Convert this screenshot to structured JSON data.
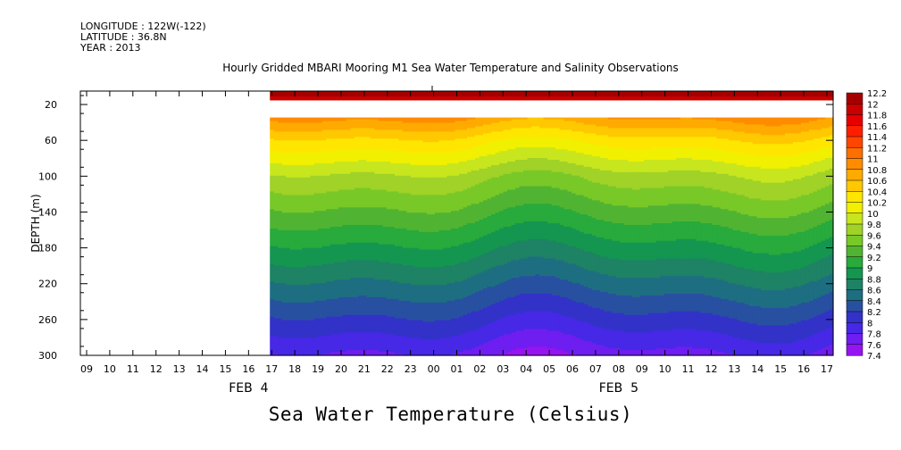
{
  "header": {
    "longitude": "LONGITUDE : 122W(-122)",
    "latitude": "LATITUDE : 36.8N",
    "year": "YEAR : 2013"
  },
  "chart_data": {
    "type": "heatmap",
    "title": "Hourly Gridded MBARI Mooring M1 Sea Water Temperature and Salinity Observations",
    "caption": "Sea Water Temperature (Celsius)",
    "ylabel": "DEPTH (m)",
    "xlabel": "",
    "x_ticks": [
      "09",
      "10",
      "11",
      "12",
      "13",
      "14",
      "15",
      "16",
      "17",
      "18",
      "19",
      "20",
      "21",
      "22",
      "23",
      "00",
      "01",
      "02",
      "03",
      "04",
      "05",
      "06",
      "07",
      "08",
      "09",
      "10",
      "11",
      "12",
      "13",
      "14",
      "15",
      "16",
      "17"
    ],
    "date_labels": [
      {
        "text": "FEB  4",
        "hour_index": 7
      },
      {
        "text": "FEB  5",
        "hour_index": 23
      }
    ],
    "y_ticks": [
      20,
      60,
      100,
      140,
      180,
      220,
      260,
      300
    ],
    "ylim": [
      300,
      5
    ],
    "data_start_hour_index": 8,
    "gap_depth_range": [
      15,
      35
    ],
    "depth_profile": [
      {
        "depth": 10,
        "temp": 12.0
      },
      {
        "depth": 35,
        "temp": 10.8
      },
      {
        "depth": 60,
        "temp": 10.3
      },
      {
        "depth": 80,
        "temp": 10.0
      },
      {
        "depth": 100,
        "temp": 9.7
      },
      {
        "depth": 120,
        "temp": 9.5
      },
      {
        "depth": 140,
        "temp": 9.3
      },
      {
        "depth": 160,
        "temp": 9.1
      },
      {
        "depth": 180,
        "temp": 8.9
      },
      {
        "depth": 200,
        "temp": 8.7
      },
      {
        "depth": 220,
        "temp": 8.5
      },
      {
        "depth": 240,
        "temp": 8.3
      },
      {
        "depth": 260,
        "temp": 8.1
      },
      {
        "depth": 280,
        "temp": 7.9
      },
      {
        "depth": 300,
        "temp": 7.7
      }
    ],
    "colorbar": {
      "levels": [
        "12.2",
        "12",
        "11.8",
        "11.6",
        "11.4",
        "11.2",
        "11",
        "10.8",
        "10.6",
        "10.4",
        "10.2",
        "10",
        "9.8",
        "9.6",
        "9.4",
        "9.2",
        "9",
        "8.8",
        "8.6",
        "8.4",
        "8.2",
        "8",
        "7.8",
        "7.6",
        "7.4"
      ],
      "colors": [
        "#a50000",
        "#c80000",
        "#e60000",
        "#ff1e00",
        "#ff4600",
        "#ff6e00",
        "#ff8c00",
        "#ffaa00",
        "#ffc800",
        "#ffe600",
        "#f0f000",
        "#c8e61e",
        "#a0d228",
        "#78c828",
        "#50b432",
        "#28aa3c",
        "#149650",
        "#1e8264",
        "#1e6e82",
        "#2850a0",
        "#3232c8",
        "#4628e6",
        "#6e1ef0",
        "#9614f0"
      ],
      "range": [
        7.4,
        12.2
      ]
    }
  }
}
